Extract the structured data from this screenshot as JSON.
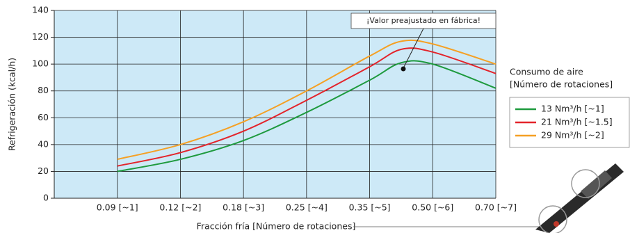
{
  "chart_data": {
    "type": "line",
    "ylabel": "Refrigeración (kcal/h)",
    "xlabel": "Fracción fría [Número de rotaciones]",
    "annotation": "¡Valor preajustado en fábrica!",
    "legend_title": [
      "Consumo de aire",
      "[Número de rotaciones]"
    ],
    "legend": "right",
    "grid": true,
    "background": "#cde9f7",
    "xlim": [
      0,
      7
    ],
    "xticks": [
      {
        "value": 1,
        "label": "0.09 [~1]"
      },
      {
        "value": 2,
        "label": "0.12 [~2]"
      },
      {
        "value": 3,
        "label": "0.18 [~3]"
      },
      {
        "value": 4,
        "label": "0.25 [~4]"
      },
      {
        "value": 5,
        "label": "0.35 [~5]"
      },
      {
        "value": 6,
        "label": "0.50 [~6]"
      },
      {
        "value": 7,
        "label": "0.70 [~7]"
      }
    ],
    "ylim": [
      0,
      140
    ],
    "yticks": [
      0,
      20,
      40,
      60,
      80,
      100,
      120,
      140
    ],
    "x": [
      1,
      2,
      3,
      4,
      5,
      5.5,
      6,
      7
    ],
    "series": [
      {
        "name": "13 Nm³/h [~1]",
        "color": "#1e9a3e",
        "values": [
          20,
          29,
          43,
          64,
          88,
          101,
          100,
          82
        ]
      },
      {
        "name": "21 Nm³/h [~1.5]",
        "color": "#e3242b",
        "values": [
          24,
          34,
          50,
          73,
          98,
          111,
          109,
          93
        ]
      },
      {
        "name": "29 Nm³/h [~2]",
        "color": "#f5a024",
        "values": [
          29,
          40,
          57,
          80,
          106,
          117,
          115,
          100
        ]
      }
    ]
  }
}
